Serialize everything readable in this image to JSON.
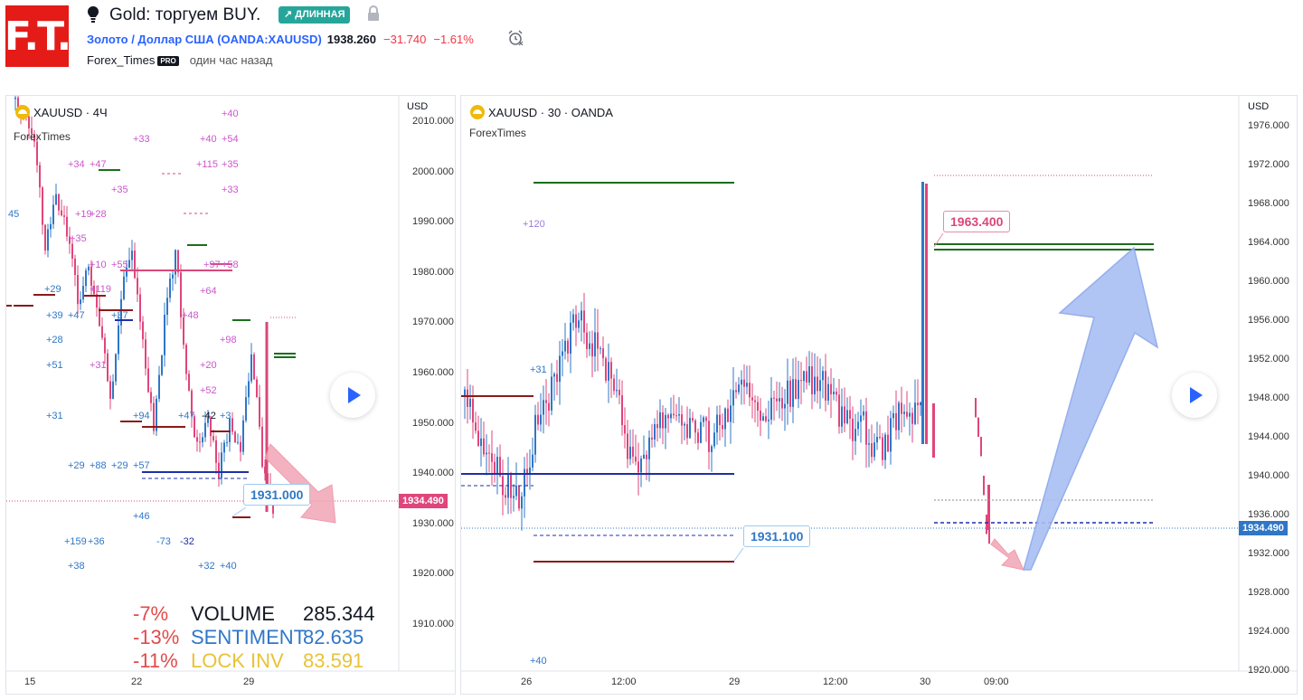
{
  "header": {
    "logo_text": "F.T.",
    "title": "Gold: торгуем BUY.",
    "badge": "↗ ДЛИННАЯ",
    "symbol_link": "Золото / Доллар США (OANDA:XAUUSD)",
    "price": "1938.260",
    "change": "−31.740",
    "change_pct": "−1.61%",
    "author": "Forex_Times",
    "author_badge": "PRO",
    "time_ago": "один час назад"
  },
  "colors": {
    "accent": "#2962ff",
    "long": "#26a69a",
    "down": "#f23645",
    "candle_up": "#2f77c6",
    "candle_down": "#e0457b",
    "pink": "#d9477a",
    "maroon": "#8b1a1a",
    "navy": "#1f2fa8",
    "green": "#1b6e1b"
  },
  "left_chart": {
    "legend": "XAUUSD · 4Ч",
    "sub": "ForexTimes",
    "currency": "USD",
    "y_ticks": [
      "2010.000",
      "2000.000",
      "1990.000",
      "1980.000",
      "1970.000",
      "1960.000",
      "1950.000",
      "1940.000",
      "1930.000",
      "1920.000",
      "1910.000"
    ],
    "x_ticks": [
      "15",
      "22",
      "29"
    ],
    "last_price": "1934.490",
    "callout": "1931.000",
    "labels": [
      "+40",
      "+33",
      "+40",
      "+54",
      "+34",
      "+47",
      "+115",
      "+35",
      "+35",
      "+33",
      "45",
      "+19",
      "+28",
      "+35",
      "+10",
      "+55",
      "+97",
      "+58",
      "+29",
      "+119",
      "+64",
      "+39",
      "+47",
      "+37",
      "+48",
      "+28",
      "+98",
      "+51",
      "+31",
      "+20",
      "+52",
      "+31",
      "+94",
      "+47",
      "-42",
      "+3",
      "+29",
      "+88",
      "+29",
      "+57",
      "+46",
      "+159",
      "+36",
      "-73",
      "-32",
      "+38",
      "+32",
      "+40"
    ],
    "stats": [
      {
        "pct": "-7%",
        "name": "VOLUME",
        "value": "285.344",
        "color": "#131722"
      },
      {
        "pct": "-13%",
        "name": "SENTIMENT",
        "value": "82.635",
        "color": "#2f77c6"
      },
      {
        "pct": "-11%",
        "name": "LOCK INV",
        "value": "83.591",
        "color": "#e8c23a"
      }
    ]
  },
  "right_chart": {
    "legend": "XAUUSD · 30 · OANDA",
    "sub": "ForexTimes",
    "currency": "USD",
    "y_ticks": [
      "1976.000",
      "1972.000",
      "1968.000",
      "1964.000",
      "1960.000",
      "1956.000",
      "1952.000",
      "1948.000",
      "1944.000",
      "1940.000",
      "1936.000",
      "1932.000",
      "1928.000",
      "1924.000",
      "1920.000"
    ],
    "x_ticks": [
      "26",
      "12:00",
      "29",
      "12:00",
      "30",
      "09:00"
    ],
    "last_price": "1934.490",
    "callout_target": "1963.400",
    "callout_support": "1931.100",
    "labels": [
      "+120",
      "+31",
      "+40"
    ]
  }
}
